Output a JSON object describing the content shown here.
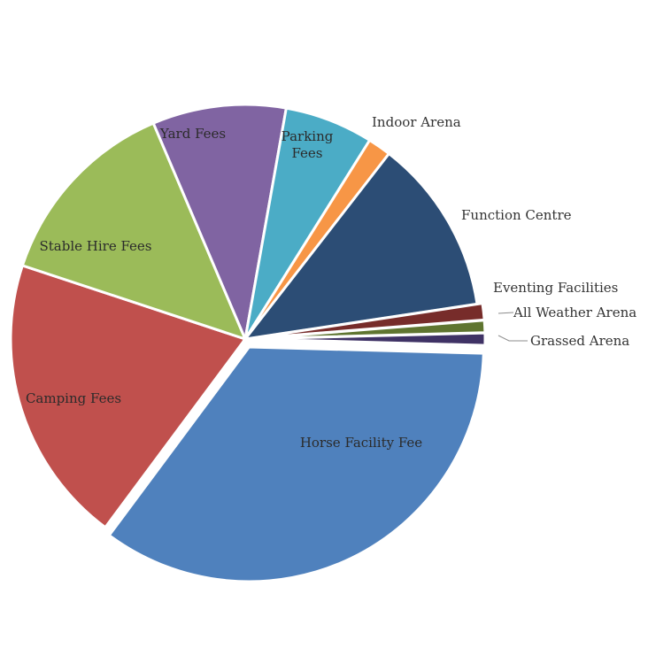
{
  "chart_data": {
    "type": "pie",
    "title": "",
    "slices": [
      {
        "label": "Grassed Arena",
        "value": 0.9,
        "color": "#3f3265"
      },
      {
        "label": "Horse Facility Fee",
        "value": 37.0,
        "color": "#4f81bd"
      },
      {
        "label": "Camping Fees",
        "value": 21.2,
        "color": "#c0504d"
      },
      {
        "label": "Stable Hire Fees",
        "value": 14.4,
        "color": "#9bbb59"
      },
      {
        "label": "Yard Fees",
        "value": 9.8,
        "color": "#8064a2"
      },
      {
        "label": "Parking Fees",
        "value": 6.5,
        "color": "#4bacc6"
      },
      {
        "label": "Indoor Arena",
        "value": 1.7,
        "color": "#f79646"
      },
      {
        "label": "Function Centre",
        "value": 12.9,
        "color": "#2c4d75"
      },
      {
        "label": "Eventing Facilities",
        "value": 1.2,
        "color": "#772c2a"
      },
      {
        "label": "All Weather Arena",
        "value": 0.9,
        "color": "#5f7530"
      }
    ],
    "legend": "none"
  }
}
